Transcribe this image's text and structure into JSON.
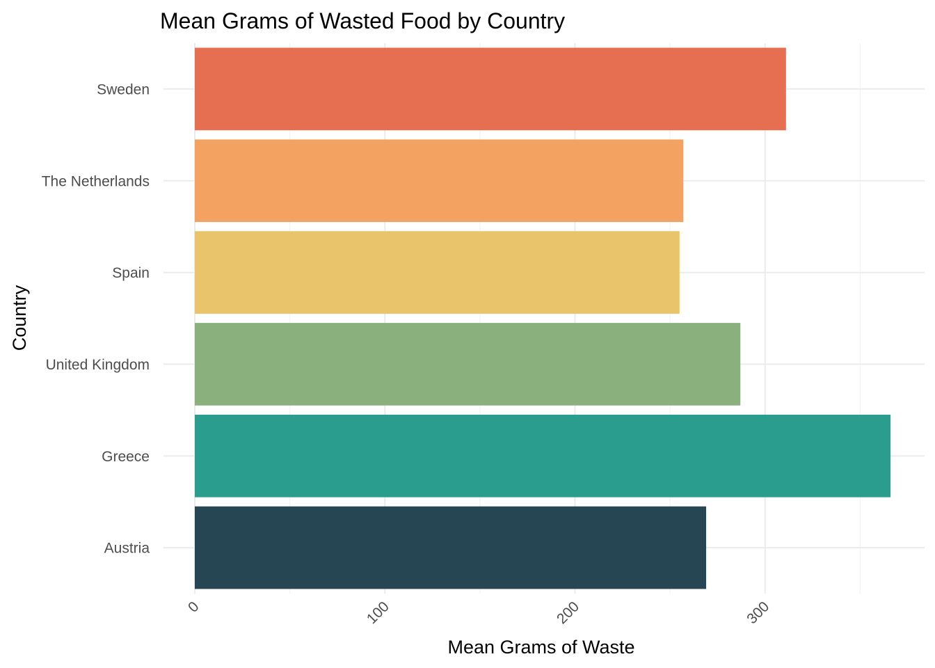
{
  "chart_data": {
    "type": "bar",
    "orientation": "horizontal",
    "title": "Mean Grams of Wasted Food by Country",
    "xlabel": "Mean Grams of Waste",
    "ylabel": "Country",
    "categories": [
      "Austria",
      "Greece",
      "United Kingdom",
      "Spain",
      "The Netherlands",
      "Sweden"
    ],
    "values": [
      269,
      366,
      287,
      255,
      257,
      311
    ],
    "colors": [
      "#264653",
      "#2a9d8f",
      "#8ab17d",
      "#e9c46a",
      "#f4a261",
      "#e76f51"
    ],
    "xlim": [
      0,
      384
    ],
    "xticks": [
      "0",
      "100",
      "200",
      "300"
    ],
    "grid": true,
    "legend": "none"
  }
}
